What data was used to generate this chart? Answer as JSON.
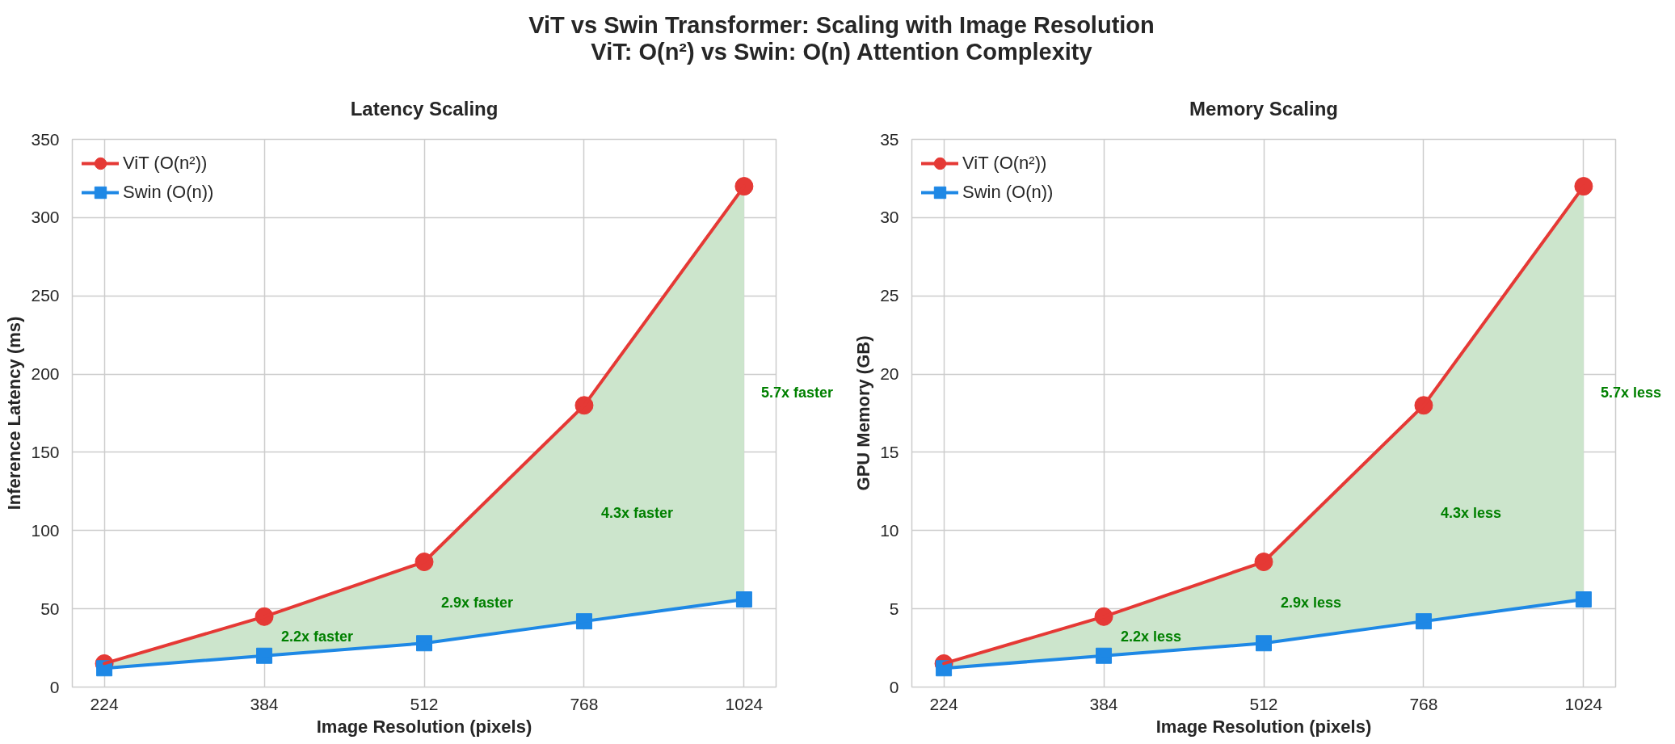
{
  "chart_data": [
    {
      "type": "other",
      "title": "ViT vs Swin Transformer: Scaling with Image Resolution",
      "subtitle": "ViT: O(n²) vs Swin: O(n) Attention Complexity"
    },
    {
      "type": "line",
      "title": "Latency Scaling",
      "xlabel": "Image Resolution (pixels)",
      "ylabel": "Inference Latency (ms)",
      "categories": [
        "224",
        "384",
        "512",
        "768",
        "1024"
      ],
      "series": [
        {
          "name": "ViT (O(n²))",
          "color": "#e53935",
          "marker": "circle",
          "values": [
            15,
            45,
            80,
            180,
            320
          ],
          "lower": [
            12,
            20,
            28,
            42,
            56
          ],
          "upper": [
            15,
            45,
            80,
            180,
            320
          ]
        },
        {
          "name": "Swin (O(n))",
          "color": "#1e88e5",
          "marker": "square",
          "values": [
            12,
            20,
            28,
            42,
            56
          ]
        }
      ],
      "ylim": [
        0,
        350
      ],
      "yticks": [
        0,
        50,
        100,
        150,
        200,
        250,
        300,
        350
      ],
      "grid": true,
      "legend": "top left",
      "line_style": "solid",
      "annotations": [
        "2.2x faster",
        "2.9x faster",
        "4.3x faster",
        "5.7x faster"
      ]
    },
    {
      "type": "line",
      "title": "Memory Scaling",
      "xlabel": "Image Resolution (pixels)",
      "ylabel": "GPU Memory (GB)",
      "categories": [
        "224",
        "384",
        "512",
        "768",
        "1024"
      ],
      "series": [
        {
          "name": "ViT (O(n²))",
          "color": "#e53935",
          "marker": "circle",
          "values": [
            1.5,
            4.5,
            8,
            18,
            32
          ],
          "lower": [
            1.2,
            2.0,
            2.8,
            4.2,
            5.6
          ],
          "upper": [
            1.5,
            4.5,
            8,
            18,
            32
          ]
        },
        {
          "name": "Swin (O(n))",
          "color": "#1e88e5",
          "marker": "square",
          "values": [
            1.2,
            2.0,
            2.8,
            4.2,
            5.6
          ]
        }
      ],
      "ylim": [
        0,
        35
      ],
      "yticks": [
        0,
        5,
        10,
        15,
        20,
        25,
        30,
        35
      ],
      "grid": true,
      "legend": "top left",
      "line_style": "solid",
      "annotations": [
        "2.2x less",
        "2.9x less",
        "4.3x less",
        "5.7x less"
      ]
    }
  ]
}
